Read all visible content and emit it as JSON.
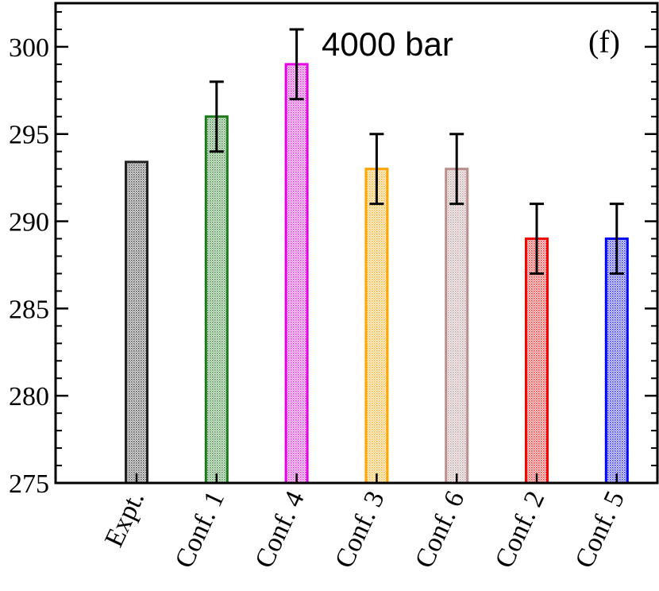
{
  "chart_data": {
    "type": "bar",
    "title": "",
    "annotation": "4000 bar",
    "panel_label": "(f)",
    "xlabel": "",
    "ylabel": "",
    "ylim": [
      275,
      302.5
    ],
    "yticks": [
      275,
      280,
      285,
      290,
      295,
      300
    ],
    "categories": [
      "Expt.",
      "Conf. 1",
      "Conf. 4",
      "Conf. 3",
      "Conf. 6",
      "Conf. 2",
      "Conf. 5"
    ],
    "values": [
      293.4,
      296.0,
      299.0,
      293.0,
      293.0,
      289.0,
      289.0
    ],
    "errors": [
      null,
      2,
      2,
      2,
      2,
      2,
      2
    ],
    "colors": [
      "#222222",
      "#1a7a1a",
      "#e600e6",
      "#ffa500",
      "#bc8f8f",
      "#ff0000",
      "#0000ff"
    ],
    "grid": false
  }
}
